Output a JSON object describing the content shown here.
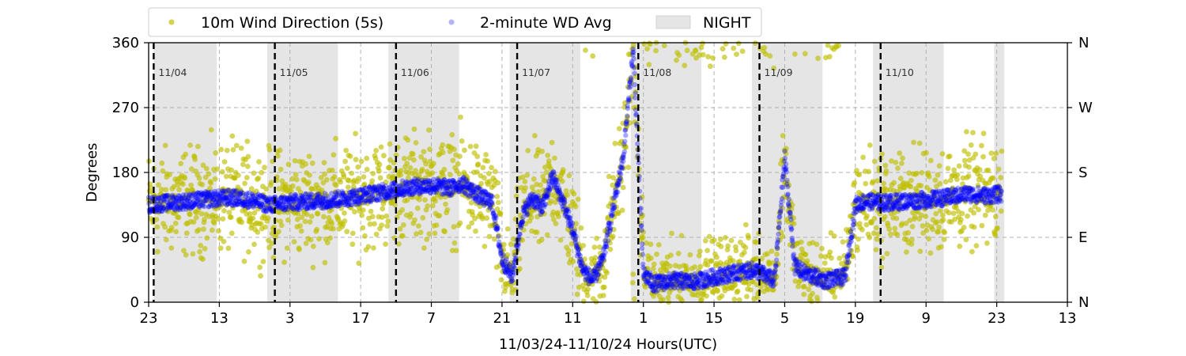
{
  "chart_data": {
    "type": "scatter",
    "xlabel": "11/03/24-11/10/24  Hours(UTC)",
    "ylabel": "Degrees",
    "ylim": [
      0,
      360
    ],
    "x_unit": "hours since 11/03/24 23:00 UTC",
    "xlim": [
      0,
      182
    ],
    "x_tick_values": [
      0,
      14,
      28,
      42,
      56,
      70,
      84,
      98,
      112,
      126,
      140,
      154,
      168,
      182
    ],
    "x_tick_labels": [
      "23",
      "13",
      "3",
      "17",
      "7",
      "21",
      "11",
      "1",
      "15",
      "5",
      "19",
      "9",
      "23",
      "13"
    ],
    "y_ticks": [
      0,
      90,
      180,
      270,
      360
    ],
    "y2_ticks": [
      {
        "value": 0,
        "label": "N"
      },
      {
        "value": 90,
        "label": "E"
      },
      {
        "value": 180,
        "label": "S"
      },
      {
        "value": 270,
        "label": "W"
      },
      {
        "value": 360,
        "label": "N"
      }
    ],
    "grid": true,
    "legend": {
      "placement": "top (above plot)",
      "entries": [
        {
          "label": "10m Wind Direction (5s)",
          "color": "#bfbf00",
          "marker": "dot"
        },
        {
          "label": "2-minute WD Avg",
          "color": "#0000ff",
          "marker": "dot-translucent"
        },
        {
          "label": "NIGHT",
          "color": "#e5e5e5",
          "marker": "patch"
        }
      ]
    },
    "night_periods": [
      [
        1,
        13.5
      ],
      [
        23.5,
        37.5
      ],
      [
        47.5,
        61.5
      ],
      [
        71.5,
        85.5
      ],
      [
        95.5,
        109.5
      ],
      [
        119.5,
        133.5
      ],
      [
        143.5,
        157.5
      ],
      [
        167.5,
        169.5
      ]
    ],
    "day_markers": [
      {
        "x": 1,
        "label": "11/04"
      },
      {
        "x": 25,
        "label": "11/05"
      },
      {
        "x": 49,
        "label": "11/06"
      },
      {
        "x": 73,
        "label": "11/07"
      },
      {
        "x": 97,
        "label": "11/08"
      },
      {
        "x": 121,
        "label": "11/09"
      },
      {
        "x": 145,
        "label": "11/10"
      }
    ],
    "series": [
      {
        "name": "2-minute WD Avg",
        "color": "#0000ff",
        "x": [
          0,
          4,
          8,
          12,
          16,
          20,
          24,
          28,
          32,
          36,
          40,
          44,
          48,
          52,
          56,
          60,
          62,
          64,
          66,
          68,
          70,
          72,
          74,
          76,
          78,
          80,
          82,
          84,
          86,
          88,
          90,
          92,
          94,
          96,
          98,
          100,
          104,
          108,
          112,
          116,
          120,
          124,
          126,
          128,
          130,
          134,
          138,
          140,
          142,
          146,
          150,
          154,
          158,
          162,
          166,
          169
        ],
        "values": [
          135,
          138,
          140,
          143,
          145,
          142,
          135,
          138,
          140,
          142,
          145,
          150,
          155,
          160,
          162,
          158,
          165,
          155,
          145,
          140,
          60,
          35,
          120,
          145,
          130,
          175,
          140,
          100,
          45,
          30,
          60,
          130,
          200,
          350,
          40,
          25,
          30,
          28,
          35,
          40,
          45,
          30,
          200,
          50,
          40,
          30,
          35,
          135,
          140,
          138,
          140,
          142,
          145,
          150,
          148,
          150
        ]
      },
      {
        "name": "10m Wind Direction (5s)",
        "color": "#bfbf00",
        "x": [
          0,
          4,
          8,
          12,
          16,
          20,
          24,
          28,
          32,
          36,
          40,
          44,
          48,
          52,
          56,
          60,
          62,
          64,
          66,
          68,
          70,
          72,
          74,
          76,
          78,
          80,
          82,
          84,
          86,
          88,
          90,
          92,
          94,
          96,
          98,
          100,
          104,
          108,
          112,
          116,
          120,
          124,
          126,
          128,
          130,
          134,
          138,
          140,
          142,
          146,
          150,
          154,
          158,
          162,
          166,
          169
        ],
        "values": [
          135,
          138,
          140,
          143,
          145,
          142,
          135,
          138,
          140,
          142,
          145,
          150,
          155,
          160,
          162,
          158,
          165,
          155,
          145,
          140,
          60,
          35,
          120,
          145,
          130,
          175,
          140,
          100,
          45,
          30,
          60,
          130,
          200,
          350,
          40,
          25,
          30,
          28,
          35,
          40,
          45,
          30,
          200,
          50,
          40,
          30,
          35,
          135,
          140,
          138,
          140,
          142,
          145,
          150,
          148,
          150
        ]
      }
    ]
  }
}
